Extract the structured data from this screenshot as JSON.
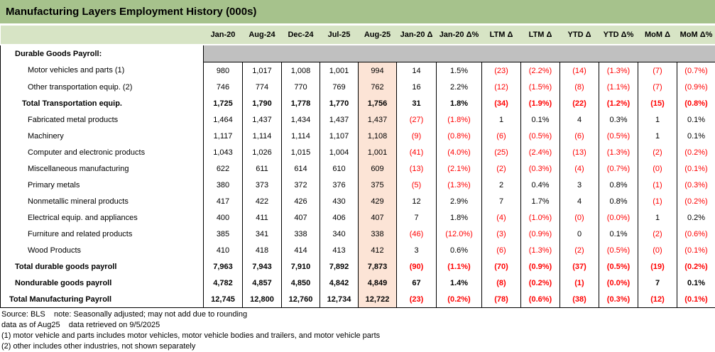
{
  "title": "Manufacturing Layers Employment History (000s)",
  "colors": {
    "title_bar": "#a6c28c",
    "header_row": "#d7e4c5",
    "section_bar": "#c0c0c0",
    "highlight_column": "#fce4d6",
    "negative_text": "#ff0000"
  },
  "columns": [
    "Jan-20",
    "Aug-24",
    "Dec-24",
    "Jul-25",
    "Aug-25",
    "Jan-20 Δ",
    "Jan-20 Δ%",
    "LTM Δ",
    "LTM Δ",
    "YTD Δ",
    "YTD Δ%",
    "MoM Δ",
    "MoM Δ%"
  ],
  "highlight_column_index": 4,
  "rows": [
    {
      "label": "Durable Goods Payroll:",
      "indent": 1,
      "bold": true,
      "section": true,
      "values": []
    },
    {
      "label": "Motor vehicles and parts (1)",
      "indent": 3,
      "bold": false,
      "values": [
        "980",
        "1,017",
        "1,008",
        "1,001",
        "994",
        "14",
        "1.5%",
        "(23)",
        "(2.2%)",
        "(14)",
        "(1.3%)",
        "(7)",
        "(0.7%)"
      ]
    },
    {
      "label": "Other transportation equip. (2)",
      "indent": 3,
      "bold": false,
      "values": [
        "746",
        "774",
        "770",
        "769",
        "762",
        "16",
        "2.2%",
        "(12)",
        "(1.5%)",
        "(8)",
        "(1.1%)",
        "(7)",
        "(0.9%)"
      ]
    },
    {
      "label": "Total Transportation equip.",
      "indent": 2,
      "bold": true,
      "values": [
        "1,725",
        "1,790",
        "1,778",
        "1,770",
        "1,756",
        "31",
        "1.8%",
        "(34)",
        "(1.9%)",
        "(22)",
        "(1.2%)",
        "(15)",
        "(0.8%)"
      ]
    },
    {
      "label": "Fabricated metal products",
      "indent": 3,
      "bold": false,
      "values": [
        "1,464",
        "1,437",
        "1,434",
        "1,437",
        "1,437",
        "(27)",
        "(1.8%)",
        "1",
        "0.1%",
        "4",
        "0.3%",
        "1",
        "0.1%"
      ]
    },
    {
      "label": "Machinery",
      "indent": 3,
      "bold": false,
      "values": [
        "1,117",
        "1,114",
        "1,114",
        "1,107",
        "1,108",
        "(9)",
        "(0.8%)",
        "(6)",
        "(0.5%)",
        "(6)",
        "(0.5%)",
        "1",
        "0.1%"
      ]
    },
    {
      "label": "Computer and electronic products",
      "indent": 3,
      "bold": false,
      "values": [
        "1,043",
        "1,026",
        "1,015",
        "1,004",
        "1,001",
        "(41)",
        "(4.0%)",
        "(25)",
        "(2.4%)",
        "(13)",
        "(1.3%)",
        "(2)",
        "(0.2%)"
      ]
    },
    {
      "label": "Miscellaneous manufacturing",
      "indent": 3,
      "bold": false,
      "values": [
        "622",
        "611",
        "614",
        "610",
        "609",
        "(13)",
        "(2.1%)",
        "(2)",
        "(0.3%)",
        "(4)",
        "(0.7%)",
        "(0)",
        "(0.1%)"
      ]
    },
    {
      "label": "Primary metals",
      "indent": 3,
      "bold": false,
      "values": [
        "380",
        "373",
        "372",
        "376",
        "375",
        "(5)",
        "(1.3%)",
        "2",
        "0.4%",
        "3",
        "0.8%",
        "(1)",
        "(0.3%)"
      ]
    },
    {
      "label": "Nonmetallic mineral products",
      "indent": 3,
      "bold": false,
      "values": [
        "417",
        "422",
        "426",
        "430",
        "429",
        "12",
        "2.9%",
        "7",
        "1.7%",
        "4",
        "0.8%",
        "(1)",
        "(0.2%)"
      ]
    },
    {
      "label": "Electrical equip. and appliances",
      "indent": 3,
      "bold": false,
      "values": [
        "400",
        "411",
        "407",
        "406",
        "407",
        "7",
        "1.8%",
        "(4)",
        "(1.0%)",
        "(0)",
        "(0.0%)",
        "1",
        "0.2%"
      ]
    },
    {
      "label": "Furniture and related products",
      "indent": 3,
      "bold": false,
      "values": [
        "385",
        "341",
        "338",
        "340",
        "338",
        "(46)",
        "(12.0%)",
        "(3)",
        "(0.9%)",
        "0",
        "0.1%",
        "(2)",
        "(0.6%)"
      ]
    },
    {
      "label": "Wood Products",
      "indent": 3,
      "bold": false,
      "values": [
        "410",
        "418",
        "414",
        "413",
        "412",
        "3",
        "0.6%",
        "(6)",
        "(1.3%)",
        "(2)",
        "(0.5%)",
        "(0)",
        "(0.1%)"
      ]
    },
    {
      "label": "Total durable goods payroll",
      "indent": 1,
      "bold": true,
      "values": [
        "7,963",
        "7,943",
        "7,910",
        "7,892",
        "7,873",
        "(90)",
        "(1.1%)",
        "(70)",
        "(0.9%)",
        "(37)",
        "(0.5%)",
        "(19)",
        "(0.2%)"
      ]
    },
    {
      "label": "Nondurable goods payroll",
      "indent": 1,
      "bold": true,
      "values": [
        "4,782",
        "4,857",
        "4,850",
        "4,842",
        "4,849",
        "67",
        "1.4%",
        "(8)",
        "(0.2%)",
        "(1)",
        "(0.0%)",
        "7",
        "0.1%"
      ]
    },
    {
      "label": "Total Manufacturing Payroll",
      "indent": 0,
      "bold": true,
      "values": [
        "12,745",
        "12,800",
        "12,760",
        "12,734",
        "12,722",
        "(23)",
        "(0.2%)",
        "(78)",
        "(0.6%)",
        "(38)",
        "(0.3%)",
        "(12)",
        "(0.1%)"
      ]
    }
  ],
  "footer": {
    "lines": [
      "Source: BLS    note: Seasonally adjusted; may not add due to rounding",
      "data as of Aug25    data retrieved on 9/5/2025",
      "(1) motor vehicle and parts includes motor vehicles, motor vehicle bodies and trailers, and motor vehicle parts",
      "(2) other includes other industries, not shown separately"
    ]
  }
}
